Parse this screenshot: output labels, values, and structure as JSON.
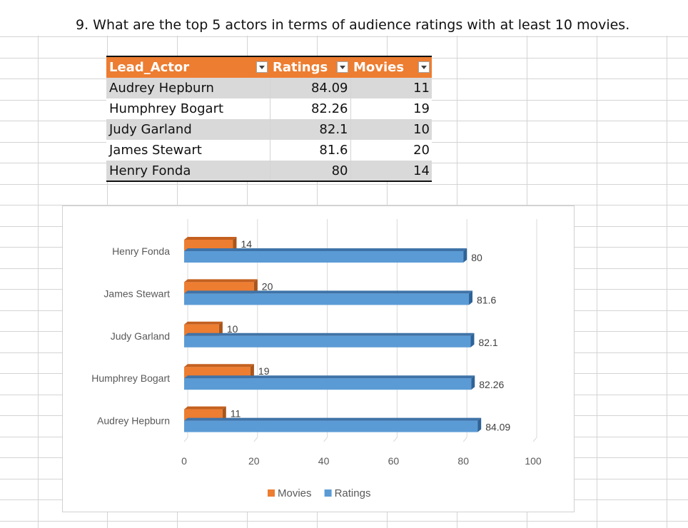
{
  "question": "9. What are the top 5 actors in terms of audience ratings with at least 10 movies.",
  "table": {
    "headers": [
      "Lead_Actor",
      "Ratings",
      "Movies"
    ],
    "rows": [
      {
        "actor": "Audrey Hepburn",
        "ratings": "84.09",
        "movies": "11"
      },
      {
        "actor": "Humphrey Bogart",
        "ratings": "82.26",
        "movies": "19"
      },
      {
        "actor": "Judy Garland",
        "ratings": "82.1",
        "movies": "10"
      },
      {
        "actor": "James Stewart",
        "ratings": "81.6",
        "movies": "20"
      },
      {
        "actor": "Henry Fonda",
        "ratings": "80",
        "movies": "14"
      }
    ],
    "header_color": "#ed7d31",
    "band_color": "#d9d9d9"
  },
  "chart_data": {
    "type": "bar",
    "orientation": "horizontal",
    "style": "3d",
    "categories": [
      "Audrey Hepburn",
      "Humphrey Bogart",
      "Judy Garland",
      "James Stewart",
      "Henry Fonda"
    ],
    "series": [
      {
        "name": "Movies",
        "values": [
          11,
          19,
          10,
          20,
          14
        ],
        "color": "#ed7d31"
      },
      {
        "name": "Ratings",
        "values": [
          84.09,
          82.26,
          82.1,
          81.6,
          80
        ],
        "color": "#5b9bd5"
      }
    ],
    "xlim": [
      0,
      100
    ],
    "x_ticks": [
      "0",
      "20",
      "40",
      "60",
      "80",
      "100"
    ],
    "grid": true,
    "legend": "bottom",
    "data_labels": true
  }
}
